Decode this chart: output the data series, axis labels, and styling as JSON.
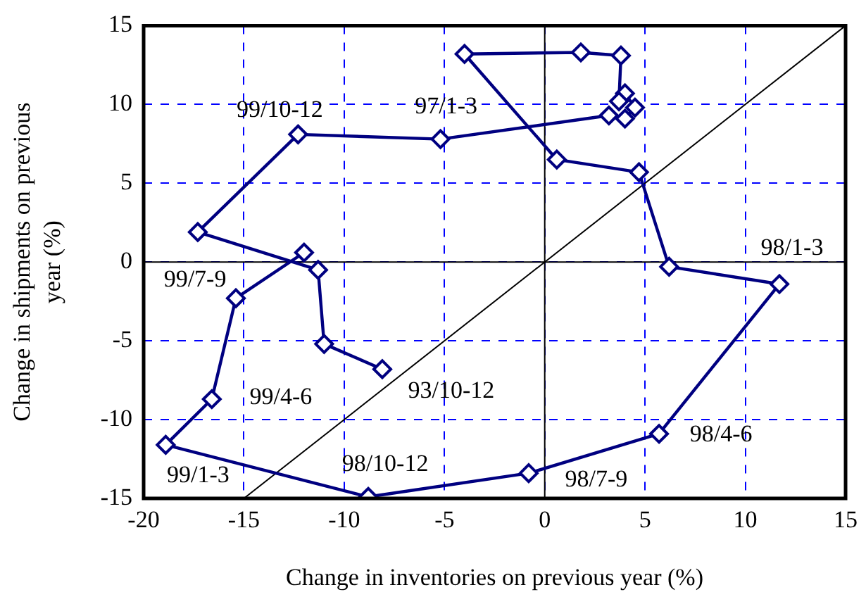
{
  "chart_data": {
    "type": "line",
    "xlabel": "Change in inventories on previous year (%)",
    "ylabel": "Change in shipments on previous year (%)",
    "xlim": [
      -20,
      15
    ],
    "xticks": [
      -20,
      -15,
      -10,
      -5,
      0,
      5,
      10,
      15
    ],
    "ylim": [
      -15,
      15
    ],
    "yticks": [
      -15,
      -10,
      -5,
      0,
      5,
      10,
      15
    ],
    "grid": true,
    "legend": false,
    "marker": "diamond",
    "line_style": "solid",
    "series": [
      {
        "color": "#000080",
        "x": [
          -8.1,
          -11.0,
          -11.3,
          -17.3,
          -12.3,
          -5.2,
          3.2,
          4.0,
          4.5,
          4.0,
          3.7,
          3.8,
          1.8,
          -4.0,
          0.6,
          4.7,
          6.2,
          11.7,
          5.7,
          -0.8,
          -8.8,
          -18.9,
          -16.6,
          -15.4,
          -12.0
        ],
        "values": [
          -6.8,
          -5.2,
          -0.5,
          1.9,
          8.1,
          7.8,
          9.3,
          9.1,
          9.8,
          10.7,
          10.2,
          13.1,
          13.3,
          13.2,
          6.5,
          5.7,
          -0.3,
          -1.4,
          -10.9,
          -13.4,
          -14.9,
          -11.6,
          -8.7,
          -2.3,
          0.6
        ]
      },
      {
        "color": "#000000",
        "marker": "none",
        "x": [
          -15,
          15
        ],
        "values": [
          -15,
          15
        ]
      }
    ],
    "annotations": [
      {
        "text": "99/10-12",
        "x": -12.3,
        "y": 8.1
      },
      {
        "text": "97/1-3",
        "x": -5.2,
        "y": 7.8
      },
      {
        "text": "98/1-3",
        "x": 11.7,
        "y": -1.4
      },
      {
        "text": "99/7-9",
        "x": -15.4,
        "y": -2.3
      },
      {
        "text": "99/4-6",
        "x": -16.6,
        "y": -8.7
      },
      {
        "text": "93/10-12",
        "x": -8.1,
        "y": -6.8
      },
      {
        "text": "99/1-3",
        "x": -18.9,
        "y": -11.6
      },
      {
        "text": "98/10-12",
        "x": -8.8,
        "y": -14.9
      },
      {
        "text": "98/4-6",
        "x": 5.7,
        "y": -10.9
      },
      {
        "text": "98/7-9",
        "x": -0.8,
        "y": -13.4
      }
    ]
  }
}
